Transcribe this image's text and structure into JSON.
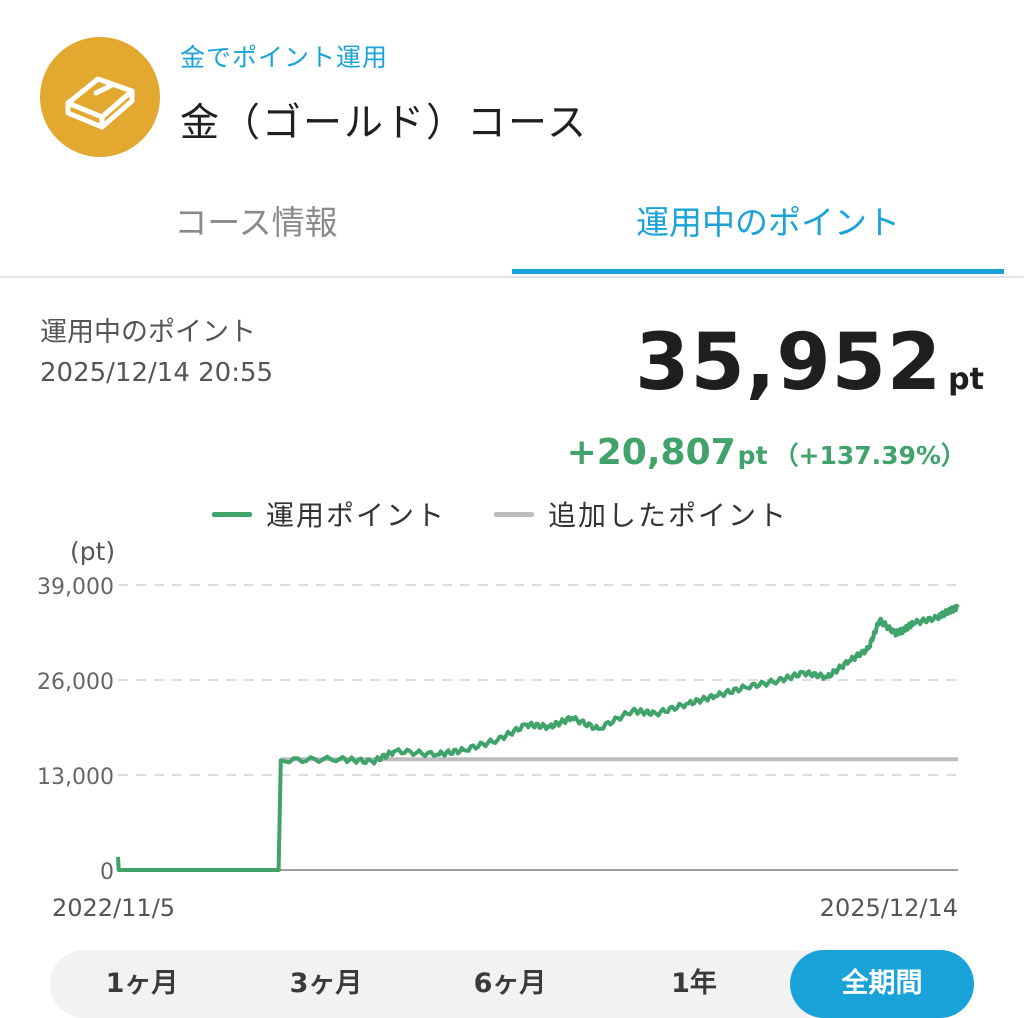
{
  "header": {
    "subtitle": "金でポイント運用",
    "title": "金（ゴールド）コース",
    "icon": "gold-bar-icon",
    "icon_bg": "#E3A82F"
  },
  "tabs": [
    {
      "label": "コース情報",
      "active": false
    },
    {
      "label": "運用中のポイント",
      "active": true
    }
  ],
  "summary": {
    "label": "運用中のポイント",
    "timestamp": "2025/12/14 20:55",
    "total_value": "35,952",
    "total_unit": "pt",
    "gain_value": "+20,807",
    "gain_unit": "pt",
    "gain_pct": "（+137.39%）"
  },
  "legend": [
    {
      "label": "運用ポイント",
      "color": "#3FA36B"
    },
    {
      "label": "追加したポイント",
      "color": "#BDBDBD"
    }
  ],
  "chart_data": {
    "type": "line",
    "ylabel": "(pt)",
    "ylim": [
      0,
      39000
    ],
    "yticks": [
      "0",
      "13,000",
      "26,000",
      "39,000"
    ],
    "x_start_label": "2022/11/5",
    "x_end_label": "2025/12/14",
    "grid": true,
    "series": [
      {
        "name": "運用ポイント",
        "color": "#3FA36B",
        "x": [
          "2022-11-05",
          "2022-11-06",
          "2023-06-10",
          "2023-06-13",
          "2023-09-01",
          "2023-10-15",
          "2023-11-15",
          "2024-01-10",
          "2024-02-15",
          "2024-04-01",
          "2024-05-10",
          "2024-06-10",
          "2024-07-10",
          "2024-08-15",
          "2024-09-30",
          "2024-11-01",
          "2024-12-15",
          "2025-01-20",
          "2025-03-01",
          "2025-04-15",
          "2025-05-20",
          "2025-06-20",
          "2025-07-20",
          "2025-08-15",
          "2025-08-30",
          "2025-09-20",
          "2025-10-01",
          "2025-10-15",
          "2025-11-15",
          "2025-12-01",
          "2025-12-14"
        ],
        "y": [
          1800,
          0,
          0,
          15000,
          15200,
          14800,
          16300,
          15800,
          16400,
          17800,
          19900,
          19600,
          20800,
          19300,
          21800,
          21400,
          22800,
          23800,
          25000,
          25900,
          27000,
          26400,
          28600,
          30300,
          34200,
          32400,
          32800,
          33800,
          34500,
          35400,
          35952
        ]
      },
      {
        "name": "追加したポイント",
        "color": "#BDBDBD",
        "x": [
          "2023-06-13",
          "2025-12-14"
        ],
        "y": [
          15145,
          15145
        ]
      }
    ]
  },
  "ranges": [
    {
      "label": "1ヶ月",
      "active": false
    },
    {
      "label": "3ヶ月",
      "active": false
    },
    {
      "label": "6ヶ月",
      "active": false
    },
    {
      "label": "1年",
      "active": false
    },
    {
      "label": "全期間",
      "active": true
    }
  ]
}
